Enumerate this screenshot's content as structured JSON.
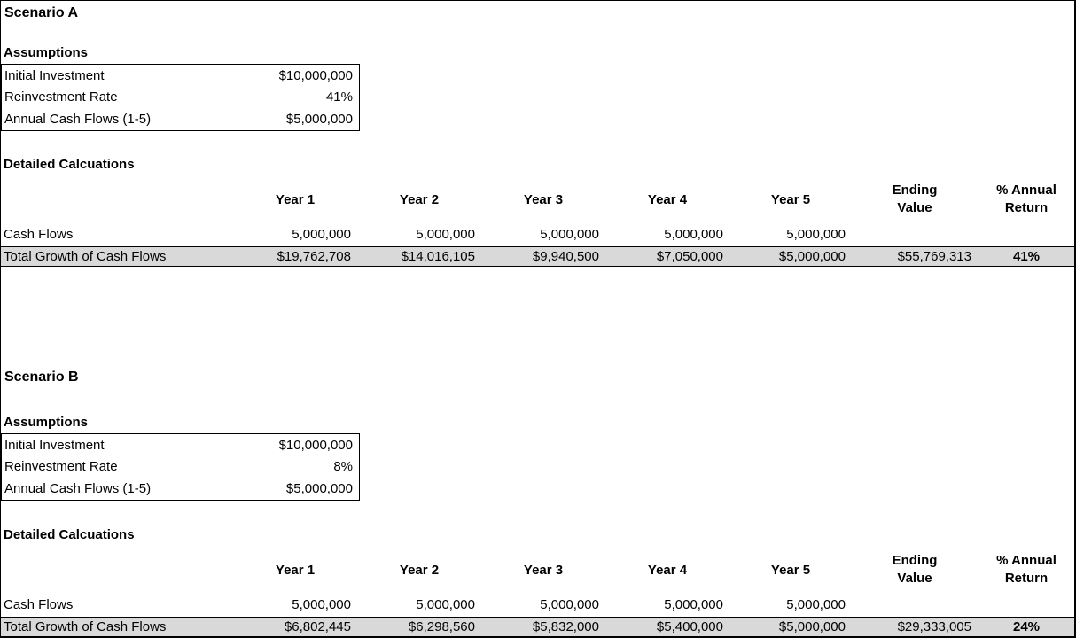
{
  "colors": {
    "total_row_bg": "#d9d9d9",
    "border": "#000000"
  },
  "scenarios": [
    {
      "title": "Scenario A",
      "assumptions_heading": "Assumptions",
      "assumptions": [
        {
          "label": "Initial Investment",
          "value": "$10,000,000"
        },
        {
          "label": "Reinvestment Rate",
          "value": "41%"
        },
        {
          "label": "Annual Cash Flows (1-5)",
          "value": "$5,000,000"
        }
      ],
      "calc_heading": "Detailed Calcuations",
      "year_headers": [
        "Year 1",
        "Year 2",
        "Year 3",
        "Year 4",
        "Year 5"
      ],
      "ending_header": [
        "Ending",
        "Value"
      ],
      "return_header": [
        "% Annual",
        "Return"
      ],
      "cash_flows_label": "Cash Flows",
      "cash_flows": [
        "5,000,000",
        "5,000,000",
        "5,000,000",
        "5,000,000",
        "5,000,000"
      ],
      "total_label": "Total Growth of Cash Flows",
      "total_values": [
        "$19,762,708",
        "$14,016,105",
        "$9,940,500",
        "$7,050,000",
        "$5,000,000"
      ],
      "ending_value": "$55,769,313",
      "annual_return": "41%"
    },
    {
      "title": "Scenario B",
      "assumptions_heading": "Assumptions",
      "assumptions": [
        {
          "label": "Initial Investment",
          "value": "$10,000,000"
        },
        {
          "label": "Reinvestment Rate",
          "value": "8%"
        },
        {
          "label": "Annual Cash Flows (1-5)",
          "value": "$5,000,000"
        }
      ],
      "calc_heading": "Detailed Calcuations",
      "year_headers": [
        "Year 1",
        "Year 2",
        "Year 3",
        "Year 4",
        "Year 5"
      ],
      "ending_header": [
        "Ending",
        "Value"
      ],
      "return_header": [
        "% Annual",
        "Return"
      ],
      "cash_flows_label": "Cash Flows",
      "cash_flows": [
        "5,000,000",
        "5,000,000",
        "5,000,000",
        "5,000,000",
        "5,000,000"
      ],
      "total_label": "Total Growth of Cash Flows",
      "total_values": [
        "$6,802,445",
        "$6,298,560",
        "$5,832,000",
        "$5,400,000",
        "$5,000,000"
      ],
      "ending_value": "$29,333,005",
      "annual_return": "24%"
    }
  ]
}
